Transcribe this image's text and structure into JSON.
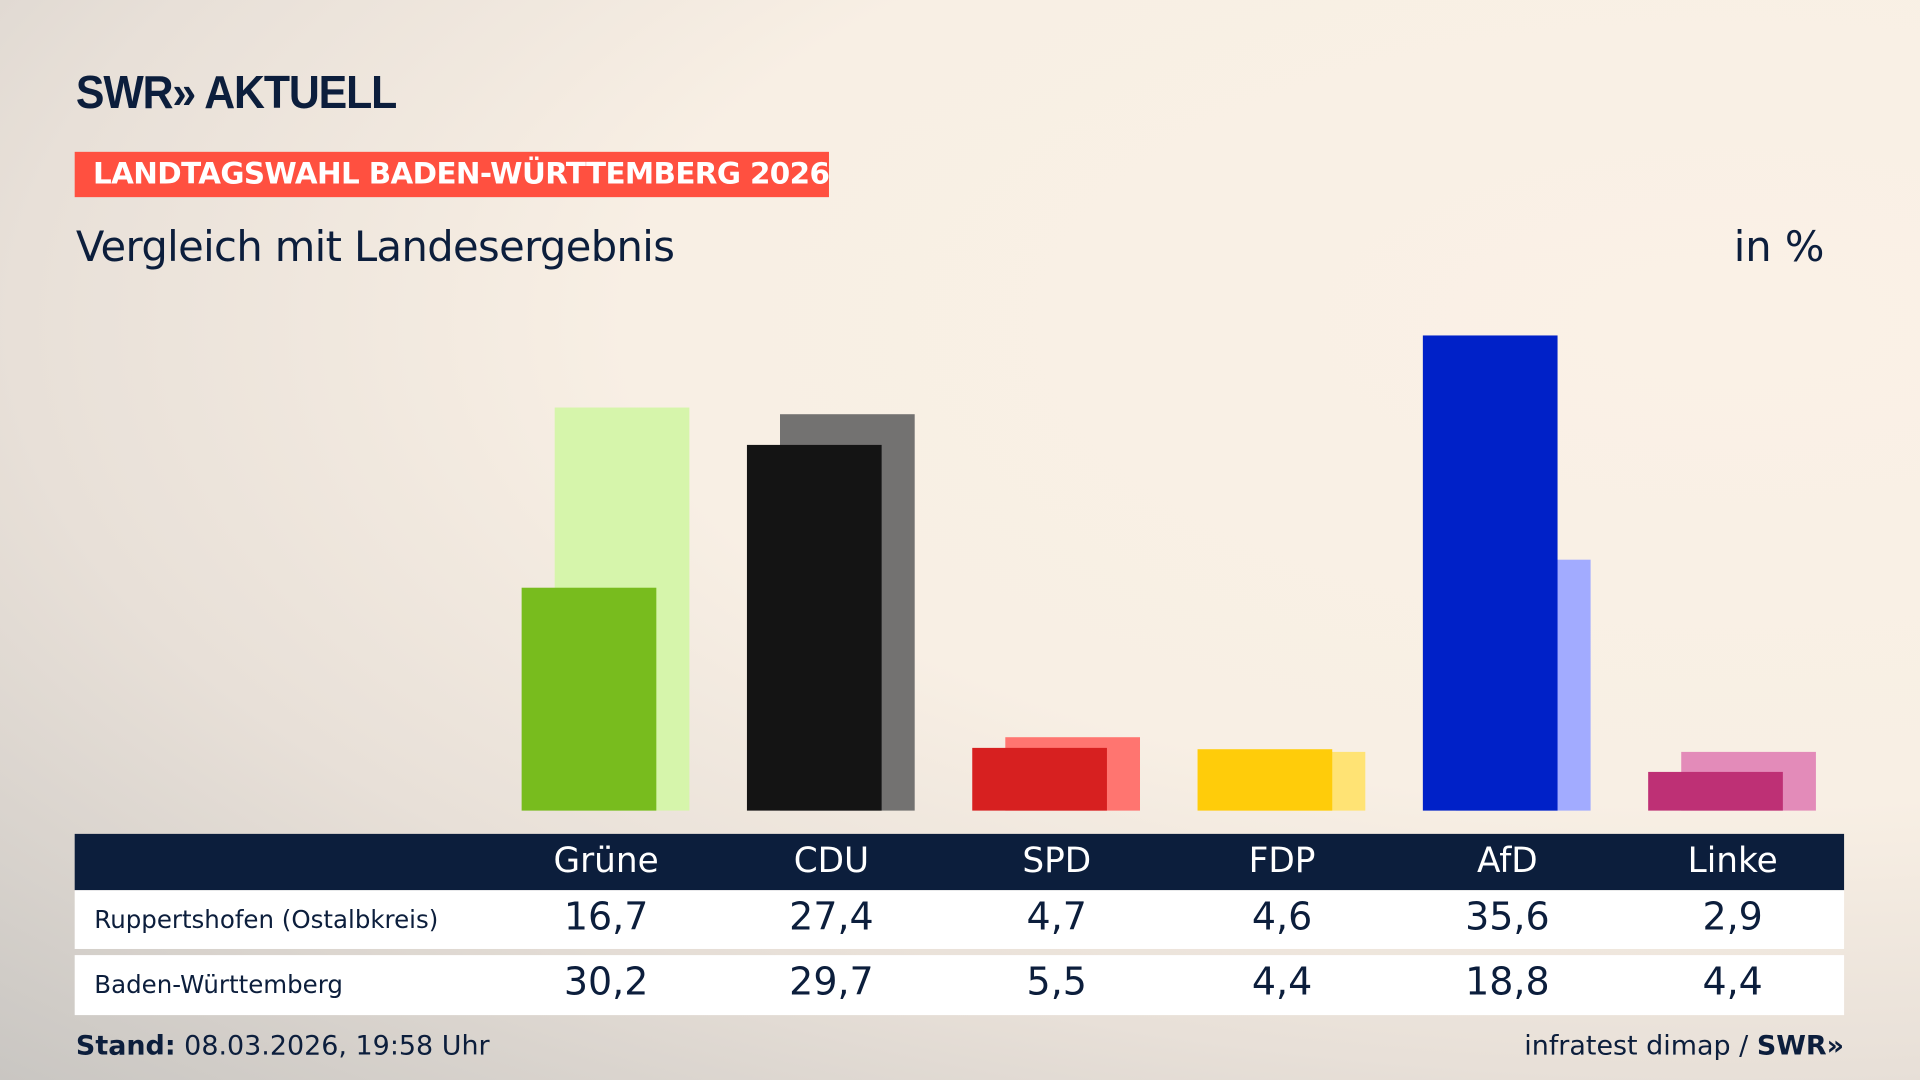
{
  "header": {
    "logo": "SWR» AKTUELL",
    "badge": "LANDTAGSWAHL BADEN-WÜRTTEMBERG 2026",
    "subtitle": "Vergleich mit Landesergebnis",
    "unit": "in %"
  },
  "chart_data": {
    "type": "bar",
    "categories": [
      "Grüne",
      "CDU",
      "SPD",
      "FDP",
      "AfD",
      "Linke"
    ],
    "series": [
      {
        "name": "Ruppertshofen (Ostalbkreis)",
        "values": [
          16.7,
          27.4,
          4.7,
          4.6,
          35.6,
          2.9
        ],
        "display": [
          "16,7",
          "27,4",
          "4,7",
          "4,6",
          "35,6",
          "2,9"
        ]
      },
      {
        "name": "Baden-Württemberg",
        "values": [
          30.2,
          29.7,
          5.5,
          4.4,
          18.8,
          4.4
        ],
        "display": [
          "30,2",
          "29,7",
          "5,5",
          "4,4",
          "18,8",
          "4,4"
        ]
      }
    ],
    "colors": {
      "primary": [
        "#78bc1e",
        "#141414",
        "#d72020",
        "#ffcc0a",
        "#0021c8",
        "#be3075"
      ],
      "secondary": [
        "#d6f5ab",
        "#737271",
        "#ff7570",
        "#ffe374",
        "#a2abff",
        "#e38bb9"
      ]
    },
    "ylim": [
      0,
      36
    ]
  },
  "footer": {
    "stand_label": "Stand:",
    "stand_value": " 08.03.2026, 19:58 Uhr",
    "source": "infratest dimap / ",
    "source_logo": "SWR»"
  }
}
